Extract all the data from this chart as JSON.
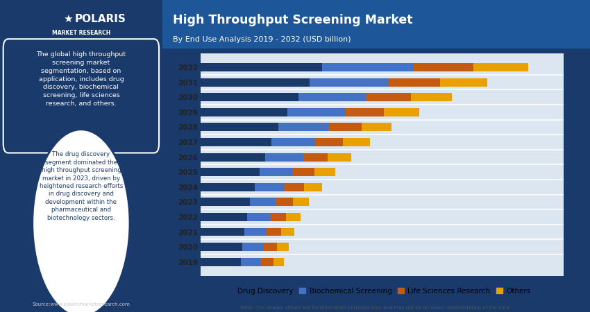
{
  "title": "High Throughput Screening Market",
  "subtitle": "By End Use Analysis 2019 - 2032 (USD billion)",
  "years": [
    2019,
    2020,
    2021,
    2022,
    2023,
    2024,
    2025,
    2026,
    2027,
    2028,
    2029,
    2030,
    2031,
    2032
  ],
  "drug_discovery": [
    1.1,
    1.15,
    1.2,
    1.28,
    1.35,
    1.5,
    1.62,
    1.78,
    1.95,
    2.15,
    2.4,
    2.7,
    3.0,
    3.35
  ],
  "biochemical_screening": [
    0.55,
    0.58,
    0.62,
    0.65,
    0.72,
    0.82,
    0.92,
    1.05,
    1.2,
    1.38,
    1.6,
    1.88,
    2.18,
    2.52
  ],
  "life_sciences_research": [
    0.35,
    0.37,
    0.4,
    0.43,
    0.47,
    0.53,
    0.6,
    0.68,
    0.78,
    0.9,
    1.05,
    1.22,
    1.42,
    1.65
  ],
  "others": [
    0.3,
    0.33,
    0.36,
    0.4,
    0.44,
    0.5,
    0.57,
    0.64,
    0.73,
    0.84,
    0.97,
    1.12,
    1.3,
    1.5
  ],
  "color_drug_discovery": "#1a3a6b",
  "color_biochemical": "#4472c4",
  "color_life_sciences": "#c55a11",
  "color_others": "#e8a100",
  "left_panel_bg": "#1a3a6b",
  "chart_bg": "#dce6f1",
  "header_bg": "#1e5799",
  "text1": "The global high throughput\nscreening market\nsegmentation, based on\napplication, includes drug\ndiscovery, biochemical\nscreening, life sciences\nresearch, and others.",
  "text2": "The drug discovery\nsegment dominated the\nhigh throughput screening\nmarket in 2023, driven by\nheightened research efforts\nin drug discovery and\ndevelopment within the\npharmaceutical and\nbiotechnology sectors.",
  "source_text": "Source:www.polarismarketresearch.com",
  "note_text": "Note: The images shown are for illustration purposes only and may not be an exact representation of the data.",
  "legend_labels": [
    "Drug Discovery",
    "Biochemical Screening",
    "Life Sciences Research",
    "Others"
  ],
  "polaris_line1": "POLARIS",
  "polaris_line2": "MARKET RESEARCH"
}
